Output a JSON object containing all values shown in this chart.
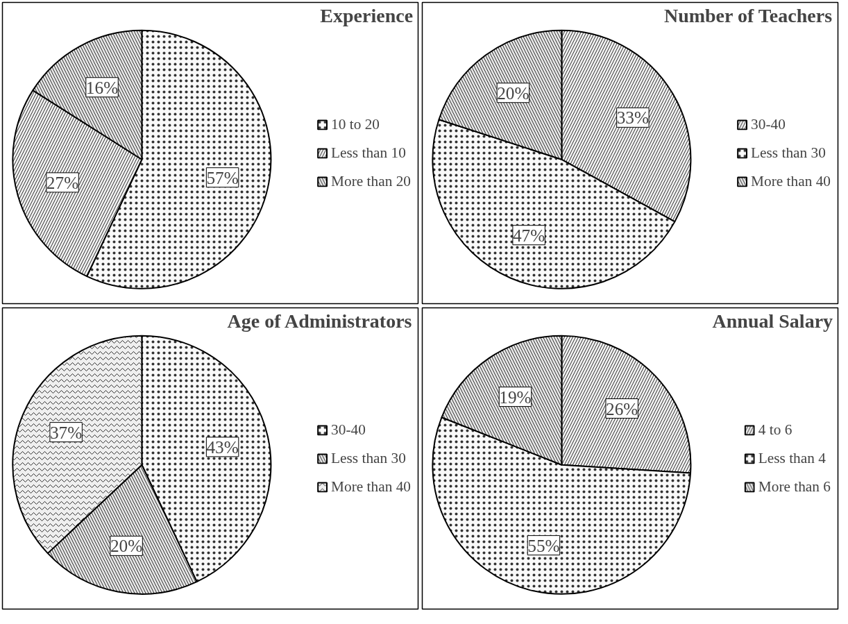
{
  "chart_data": [
    {
      "type": "pie",
      "title": "Experience",
      "categories": [
        "10 to 20",
        "Less than 10",
        "More than 20"
      ],
      "values": [
        57,
        27,
        16
      ],
      "value_labels": [
        "57%",
        "27%",
        "16%"
      ],
      "colors": [
        "#f9f9f9",
        "#efefef",
        "#e4e4e4"
      ],
      "legend": "right"
    },
    {
      "type": "pie",
      "title": "Number of Teachers",
      "categories": [
        "30-40",
        "Less than 30",
        "More than 40"
      ],
      "values": [
        33,
        47,
        20
      ],
      "value_labels": [
        "33%",
        "47%",
        "20%"
      ],
      "colors": [
        "#efefef",
        "#f9f9f9",
        "#e4e4e4"
      ],
      "legend": "right"
    },
    {
      "type": "pie",
      "title": "Age of Administrators",
      "categories": [
        "30-40",
        "Less than 30",
        "More than 40"
      ],
      "values": [
        43,
        20,
        37
      ],
      "value_labels": [
        "43%",
        "20%",
        "37%"
      ],
      "colors": [
        "#f9f9f9",
        "#e4e4e4",
        "#efefef"
      ],
      "legend": "right"
    },
    {
      "type": "pie",
      "title": "Annual Salary",
      "categories": [
        "4 to 6",
        "Less than 4",
        "More than 6"
      ],
      "values": [
        26,
        55,
        19
      ],
      "value_labels": [
        "26%",
        "55%",
        "19%"
      ],
      "colors": [
        "#efefef",
        "#f9f9f9",
        "#e4e4e4"
      ],
      "legend": "right"
    }
  ]
}
